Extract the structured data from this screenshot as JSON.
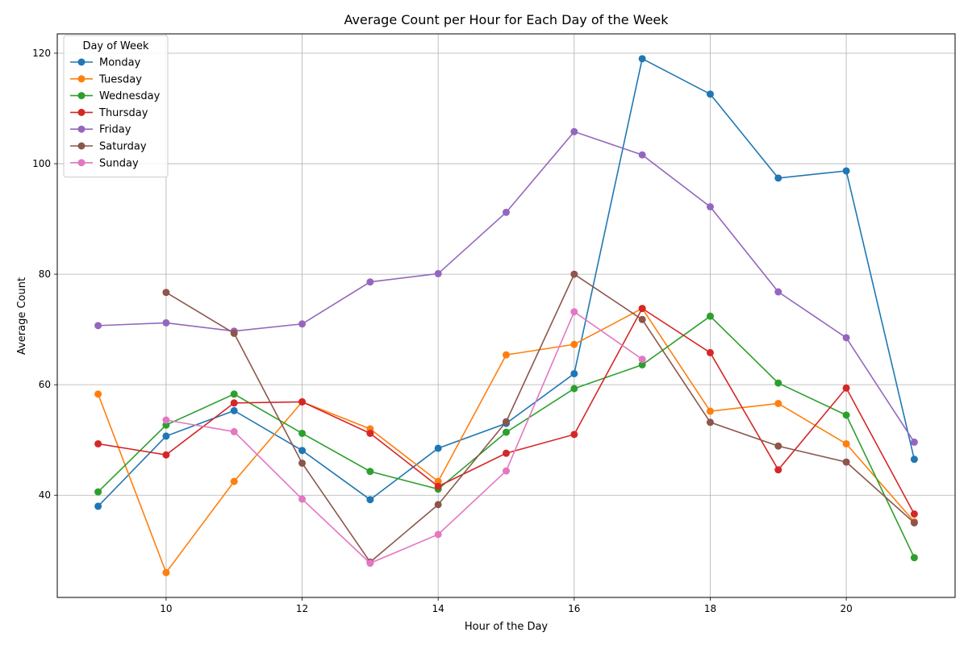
{
  "chart_data": {
    "type": "line",
    "title": "Average Count per Hour for Each Day of the Week",
    "xlabel": "Hour of the Day",
    "ylabel": "Average Count",
    "xlim": [
      8.4,
      21.6
    ],
    "ylim": [
      21.5,
      123.5
    ],
    "xticks": [
      10,
      12,
      14,
      16,
      18,
      20
    ],
    "yticks": [
      40,
      60,
      80,
      100,
      120
    ],
    "grid": true,
    "legend": {
      "title": "Day of Week",
      "placement": "top-left"
    },
    "x": [
      9,
      10,
      11,
      12,
      13,
      14,
      15,
      16,
      17,
      18,
      19,
      20,
      21
    ],
    "series": [
      {
        "name": "Monday",
        "color": "#1f77b4",
        "values": [
          38.0,
          50.7,
          55.3,
          48.1,
          39.2,
          48.5,
          53.0,
          62.0,
          119.0,
          112.6,
          97.4,
          98.7,
          46.5
        ]
      },
      {
        "name": "Tuesday",
        "color": "#ff7f0e",
        "values": [
          58.3,
          26.0,
          42.5,
          56.9,
          52.0,
          42.5,
          65.4,
          67.3,
          73.8,
          55.2,
          56.6,
          49.3,
          35.2
        ]
      },
      {
        "name": "Wednesday",
        "color": "#2ca02c",
        "values": [
          40.6,
          52.7,
          58.3,
          51.2,
          44.3,
          41.1,
          51.4,
          59.3,
          63.6,
          72.4,
          60.3,
          54.5,
          28.7
        ]
      },
      {
        "name": "Thursday",
        "color": "#d62728",
        "values": [
          49.3,
          47.3,
          56.7,
          56.9,
          51.2,
          41.6,
          47.6,
          51.0,
          73.8,
          65.8,
          44.6,
          59.4,
          36.6
        ]
      },
      {
        "name": "Friday",
        "color": "#9467bd",
        "values": [
          70.7,
          71.2,
          69.7,
          71.0,
          78.6,
          80.1,
          91.2,
          105.8,
          101.6,
          92.2,
          76.8,
          68.5,
          49.6
        ]
      },
      {
        "name": "Saturday",
        "color": "#8c564b",
        "values": [
          null,
          76.7,
          69.3,
          45.8,
          27.9,
          38.3,
          53.3,
          80.0,
          71.8,
          53.2,
          48.9,
          46.0,
          35.0
        ]
      },
      {
        "name": "Sunday",
        "color": "#e377c2",
        "values": [
          null,
          53.6,
          51.5,
          39.3,
          27.7,
          32.9,
          44.4,
          73.2,
          64.6,
          null,
          null,
          null,
          null
        ]
      }
    ]
  }
}
